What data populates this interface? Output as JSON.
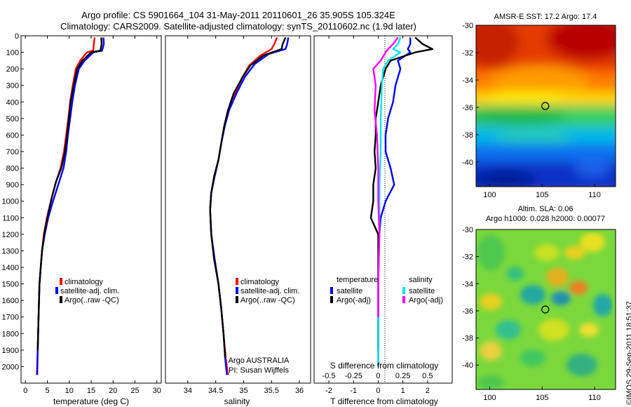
{
  "title_line1": "Argo profile: CS 5901664_104 31-May-2011 20110601_26 35.905S 105.324E",
  "title_line2": "Climatology: CARS2009. Satellite-adjusted climatology: synTS_20110602.nc (1.9d later)",
  "watermark": "©IMOS 29-Sep-2011 18:51:37",
  "colors": {
    "climatology": "#ff0000",
    "satellite_clim": "#0000ff",
    "argo": "#000000",
    "s_satellite": "#00e5ee",
    "s_argo": "#ff00ff"
  },
  "chart_data": [
    {
      "type": "line",
      "panel": "temperature",
      "xlabel": "temperature (deg C)",
      "ylabel": "",
      "xlim": [
        -1,
        31
      ],
      "ylim": [
        2100,
        0
      ],
      "x_ticks": [
        0,
        5,
        10,
        15,
        20,
        25,
        30
      ],
      "y_ticks": [
        0,
        100,
        200,
        300,
        400,
        500,
        600,
        700,
        800,
        900,
        1000,
        1100,
        1200,
        1300,
        1400,
        1500,
        1600,
        1700,
        1800,
        1900,
        2000
      ],
      "legend": [
        "climatology",
        "satellite-adj. clim.",
        "Argo(..raw -QC)"
      ],
      "legend_position": "bottom-center",
      "series": [
        {
          "name": "climatology",
          "color_key": "climatology",
          "points": [
            [
              15.8,
              10
            ],
            [
              15.6,
              50
            ],
            [
              15.5,
              90
            ],
            [
              14.0,
              100
            ],
            [
              12.5,
              150
            ],
            [
              11.5,
              200
            ],
            [
              10.8,
              300
            ],
            [
              10.2,
              400
            ],
            [
              9.8,
              500
            ],
            [
              9.3,
              600
            ],
            [
              8.8,
              700
            ],
            [
              8.0,
              800
            ],
            [
              6.8,
              900
            ],
            [
              5.8,
              1000
            ],
            [
              4.9,
              1100
            ],
            [
              4.2,
              1200
            ],
            [
              3.8,
              1300
            ],
            [
              3.5,
              1400
            ],
            [
              3.2,
              1500
            ],
            [
              3.0,
              1700
            ],
            [
              2.8,
              1900
            ],
            [
              2.6,
              2050
            ]
          ]
        },
        {
          "name": "satellite-adj. clim.",
          "color_key": "satellite_clim",
          "points": [
            [
              17.8,
              10
            ],
            [
              17.9,
              50
            ],
            [
              17.5,
              90
            ],
            [
              15.5,
              100
            ],
            [
              13.5,
              150
            ],
            [
              12.2,
              200
            ],
            [
              11.3,
              300
            ],
            [
              10.7,
              400
            ],
            [
              10.2,
              500
            ],
            [
              9.7,
              600
            ],
            [
              9.3,
              700
            ],
            [
              8.7,
              800
            ],
            [
              7.5,
              900
            ],
            [
              6.3,
              1000
            ],
            [
              5.2,
              1100
            ],
            [
              4.4,
              1200
            ],
            [
              3.8,
              1300
            ],
            [
              3.5,
              1400
            ],
            [
              3.2,
              1500
            ],
            [
              3.0,
              1700
            ],
            [
              2.8,
              1900
            ],
            [
              2.7,
              2050
            ]
          ]
        },
        {
          "name": "Argo(..raw -QC)",
          "color_key": "argo",
          "points": [
            [
              17.3,
              10
            ],
            [
              17.4,
              50
            ],
            [
              17.1,
              90
            ],
            [
              15.0,
              100
            ],
            [
              13.0,
              150
            ],
            [
              11.8,
              200
            ],
            [
              11.0,
              300
            ],
            [
              10.3,
              400
            ],
            [
              9.9,
              500
            ],
            [
              9.5,
              600
            ],
            [
              9.0,
              700
            ],
            [
              8.2,
              800
            ],
            [
              7.0,
              880
            ],
            [
              6.0,
              980
            ],
            [
              5.0,
              1100
            ],
            [
              4.3,
              1200
            ],
            [
              3.8,
              1300
            ],
            [
              3.5,
              1400
            ],
            [
              3.2,
              1500
            ],
            [
              3.0,
              1700
            ],
            [
              2.8,
              1900
            ]
          ]
        }
      ]
    },
    {
      "type": "line",
      "panel": "salinity",
      "xlabel": "salinity",
      "ylabel": "",
      "xlim": [
        33.6,
        36.2
      ],
      "ylim": [
        2100,
        0
      ],
      "x_ticks": [
        34,
        34.5,
        35,
        35.5,
        36
      ],
      "legend": [
        "climatology",
        "satellite-adj. clim.",
        "Argo(..raw -QC)"
      ],
      "legend_position": "bottom-center",
      "annotation_line1": "Argo AUSTRALIA",
      "annotation_line2": "PI: Susan Wijffels",
      "series": [
        {
          "name": "climatology",
          "color_key": "climatology",
          "points": [
            [
              35.6,
              10
            ],
            [
              35.55,
              50
            ],
            [
              35.5,
              80
            ],
            [
              35.3,
              120
            ],
            [
              35.1,
              180
            ],
            [
              34.98,
              250
            ],
            [
              34.85,
              350
            ],
            [
              34.72,
              450
            ],
            [
              34.65,
              550
            ],
            [
              34.6,
              650
            ],
            [
              34.55,
              750
            ],
            [
              34.48,
              850
            ],
            [
              34.42,
              950
            ],
            [
              34.4,
              1050
            ],
            [
              34.42,
              1200
            ],
            [
              34.48,
              1350
            ],
            [
              34.55,
              1500
            ],
            [
              34.6,
              1650
            ],
            [
              34.64,
              1800
            ],
            [
              34.68,
              1950
            ],
            [
              34.72,
              2050
            ]
          ]
        },
        {
          "name": "satellite-adj. clim.",
          "color_key": "satellite_clim",
          "points": [
            [
              35.8,
              10
            ],
            [
              35.78,
              50
            ],
            [
              35.75,
              80
            ],
            [
              35.45,
              110
            ],
            [
              35.2,
              170
            ],
            [
              35.02,
              250
            ],
            [
              34.87,
              350
            ],
            [
              34.74,
              450
            ],
            [
              34.66,
              550
            ],
            [
              34.6,
              650
            ],
            [
              34.55,
              750
            ],
            [
              34.48,
              850
            ],
            [
              34.42,
              950
            ],
            [
              34.4,
              1050
            ],
            [
              34.42,
              1200
            ],
            [
              34.48,
              1350
            ],
            [
              34.55,
              1500
            ],
            [
              34.6,
              1650
            ],
            [
              34.64,
              1800
            ],
            [
              34.67,
              1950
            ],
            [
              34.7,
              2050
            ]
          ]
        },
        {
          "name": "Argo(..raw -QC)",
          "color_key": "argo",
          "points": [
            [
              35.75,
              10
            ],
            [
              35.7,
              50
            ],
            [
              35.68,
              80
            ],
            [
              35.35,
              120
            ],
            [
              35.12,
              180
            ],
            [
              34.98,
              250
            ],
            [
              34.82,
              350
            ],
            [
              34.72,
              450
            ],
            [
              34.65,
              550
            ],
            [
              34.6,
              650
            ],
            [
              34.55,
              750
            ],
            [
              34.47,
              850
            ],
            [
              34.42,
              950
            ],
            [
              34.4,
              1050
            ],
            [
              34.42,
              1200
            ],
            [
              34.47,
              1350
            ],
            [
              34.55,
              1500
            ],
            [
              34.6,
              1650
            ],
            [
              34.64,
              1800
            ],
            [
              34.67,
              1950
            ]
          ]
        }
      ]
    },
    {
      "type": "line",
      "panel": "difference",
      "xlabel": "T difference from climatology",
      "x2label": "S difference from climatology",
      "xlim": [
        -2.6,
        3.0
      ],
      "ylim": [
        2100,
        0
      ],
      "x_ticks": [
        -2,
        -1,
        0,
        1,
        2
      ],
      "x2_ticks": [
        -0.5,
        -0.25,
        0,
        0.25,
        0.5
      ],
      "legend_temperature_title": "temperature",
      "legend_salinity_title": "salinity",
      "legend_items": [
        "satellite",
        "Argo(-adj)",
        "satellite",
        "Argo(-adj)"
      ],
      "series": [
        {
          "name": "satellite",
          "group": "temperature",
          "color_key": "satellite_clim",
          "points": [
            [
              1.3,
              10
            ],
            [
              1.3,
              50
            ],
            [
              1.2,
              80
            ],
            [
              1.3,
              100
            ],
            [
              0.8,
              150
            ],
            [
              0.9,
              200
            ],
            [
              0.7,
              300
            ],
            [
              0.6,
              400
            ],
            [
              0.4,
              500
            ],
            [
              0.3,
              600
            ],
            [
              0.3,
              700
            ],
            [
              0.5,
              800
            ],
            [
              0.65,
              900
            ],
            [
              0.3,
              1000
            ],
            [
              0.1,
              1100
            ],
            [
              0.05,
              1200
            ],
            [
              0,
              1400
            ],
            [
              0,
              1600
            ],
            [
              0,
              1800
            ],
            [
              0,
              2000
            ]
          ]
        },
        {
          "name": "Argo(-adj)",
          "group": "temperature",
          "color_key": "argo",
          "points": [
            [
              1.5,
              10
            ],
            [
              1.8,
              50
            ],
            [
              2.2,
              80
            ],
            [
              1.5,
              100
            ],
            [
              0.5,
              150
            ],
            [
              0.3,
              200
            ],
            [
              0.1,
              300
            ],
            [
              0,
              400
            ],
            [
              -0.1,
              500
            ],
            [
              -0.1,
              600
            ],
            [
              -0.15,
              700
            ],
            [
              -0.1,
              800
            ],
            [
              -0.2,
              900
            ],
            [
              -0.2,
              1000
            ],
            [
              -0.3,
              1100
            ],
            [
              0,
              1200
            ],
            [
              0,
              1400
            ],
            [
              0,
              1600
            ],
            [
              0,
              1800
            ],
            [
              0,
              1900
            ]
          ]
        },
        {
          "name": "satellite",
          "group": "salinity",
          "color_key": "s_satellite",
          "points": [
            [
              0.9,
              10
            ],
            [
              0.8,
              50
            ],
            [
              0.6,
              80
            ],
            [
              0.9,
              100
            ],
            [
              0.4,
              150
            ],
            [
              0.2,
              200
            ],
            [
              0.15,
              300
            ],
            [
              0.1,
              500
            ],
            [
              0.1,
              700
            ],
            [
              0.05,
              900
            ],
            [
              0.05,
              1200
            ],
            [
              0.0,
              1500
            ],
            [
              0.0,
              1800
            ],
            [
              0.0,
              2000
            ]
          ]
        },
        {
          "name": "Argo(-adj)",
          "group": "salinity",
          "color_key": "s_argo",
          "points": [
            [
              0.8,
              10
            ],
            [
              0.6,
              50
            ],
            [
              0.4,
              80
            ],
            [
              0.3,
              100
            ],
            [
              0.1,
              150
            ],
            [
              -0.2,
              200
            ],
            [
              -0.1,
              300
            ],
            [
              -0.15,
              450
            ],
            [
              -0.05,
              600
            ],
            [
              0.0,
              800
            ],
            [
              0.0,
              1000
            ],
            [
              0.05,
              1200
            ],
            [
              0.0,
              1500
            ],
            [
              0.0,
              1700
            ]
          ]
        }
      ]
    },
    {
      "type": "heatmap",
      "panel": "sst_map",
      "title": "AMSR-E SST: 17.2 Argo: 17.4",
      "x_ticks": [
        100,
        105,
        110
      ],
      "y_ticks": [
        -30,
        -32,
        -34,
        -36,
        -38,
        -40
      ],
      "xlim": [
        98.7,
        112
      ],
      "ylim": [
        -41.8,
        -30
      ],
      "marker": {
        "lon": 105.3,
        "lat": -35.9
      }
    },
    {
      "type": "heatmap",
      "panel": "sla_map",
      "title_line1": "Altim. SLA: 0.06",
      "title_line2": "Argo h1000: 0.028 h2000: 0.00077",
      "x_ticks": [
        100,
        105,
        110
      ],
      "y_ticks": [
        -30,
        -32,
        -34,
        -36,
        -38,
        -40
      ],
      "xlim": [
        98.7,
        112
      ],
      "ylim": [
        -41.8,
        -30
      ],
      "marker": {
        "lon": 105.3,
        "lat": -35.9
      }
    }
  ]
}
